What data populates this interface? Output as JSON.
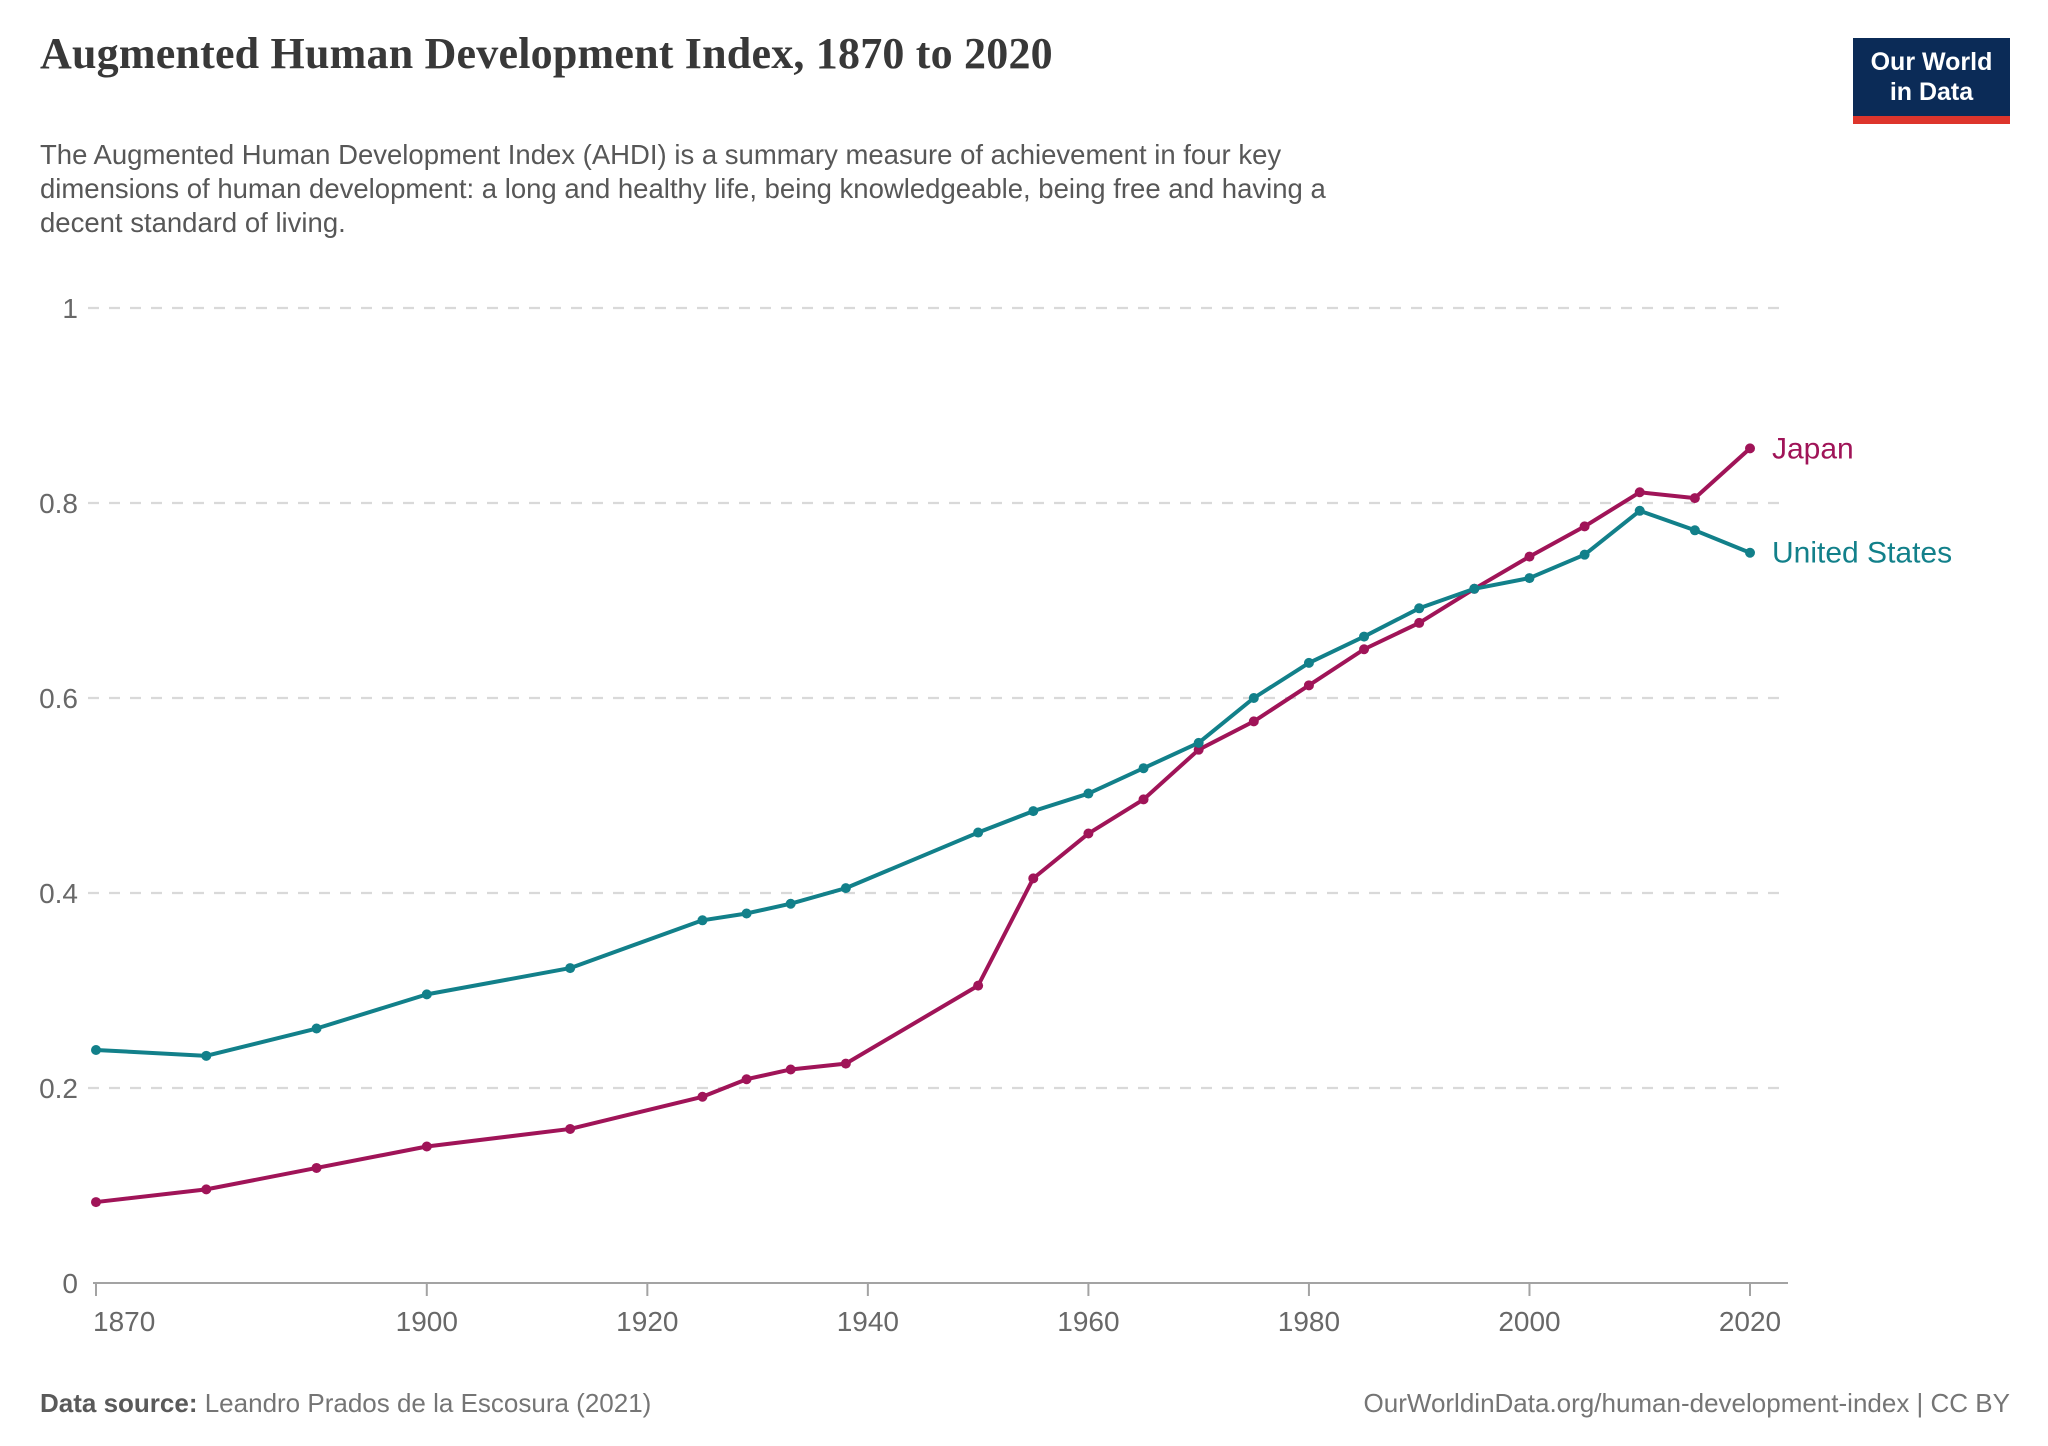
{
  "header": {
    "title": "Augmented Human Development Index, 1870 to 2020",
    "subtitle_lines": [
      "The Augmented Human Development Index (AHDI) is a summary measure of achievement in four key",
      "dimensions of human development: a long and healthy life, being knowledgeable, being free and having a",
      "decent standard of living."
    ],
    "logo": {
      "line1": "Our World",
      "line2": "in Data",
      "background": "#0b2b57",
      "accent": "#dd352c"
    }
  },
  "footer": {
    "source_label": "Data source:",
    "source_value": " Leandro Prados de la Escosura (2021)",
    "attribution": "OurWorldinData.org/human-development-index | CC BY"
  },
  "chart_data": {
    "type": "line",
    "title": "Augmented Human Development Index, 1870 to 2020",
    "subtitle": "The Augmented Human Development Index (AHDI) is a summary measure of achievement in four key dimensions of human development: a long and healthy life, being knowledgeable, being free and having a decent standard of living.",
    "x": [
      1870,
      1880,
      1890,
      1900,
      1913,
      1925,
      1929,
      1933,
      1938,
      1950,
      1955,
      1960,
      1965,
      1970,
      1975,
      1980,
      1985,
      1990,
      1995,
      2000,
      2005,
      2010,
      2015,
      2020
    ],
    "series": [
      {
        "name": "Japan",
        "color": "#a01458",
        "values": [
          0.083,
          0.096,
          0.118,
          0.14,
          0.158,
          0.191,
          0.209,
          0.219,
          0.225,
          0.305,
          0.415,
          0.461,
          0.496,
          0.547,
          0.576,
          0.613,
          0.65,
          0.677,
          0.712,
          0.745,
          0.776,
          0.811,
          0.805,
          0.856
        ]
      },
      {
        "name": "United States",
        "color": "#12808a",
        "values": [
          0.239,
          0.233,
          0.261,
          0.296,
          0.323,
          0.372,
          0.379,
          0.389,
          0.405,
          0.462,
          0.484,
          0.502,
          0.528,
          0.554,
          0.6,
          0.636,
          0.663,
          0.692,
          0.712,
          0.723,
          0.747,
          0.792,
          0.772,
          0.749
        ]
      }
    ],
    "xlabel": "",
    "ylabel": "",
    "xlim": [
      1870,
      2020
    ],
    "ylim": [
      0,
      1
    ],
    "xticks": [
      1870,
      1900,
      1920,
      1940,
      1960,
      1980,
      2000,
      2020
    ],
    "yticks": [
      0,
      0.2,
      0.4,
      0.6,
      0.8,
      1
    ],
    "ytick_labels": [
      "0",
      "0.2",
      "0.4",
      "0.6",
      "0.8",
      "1"
    ],
    "grid": "horizontal-dashed",
    "legend_position": "line-end-labels",
    "axis_color": "#a3a3a3",
    "grid_color": "#d9d9d9",
    "tick_label_color": "#686868"
  }
}
